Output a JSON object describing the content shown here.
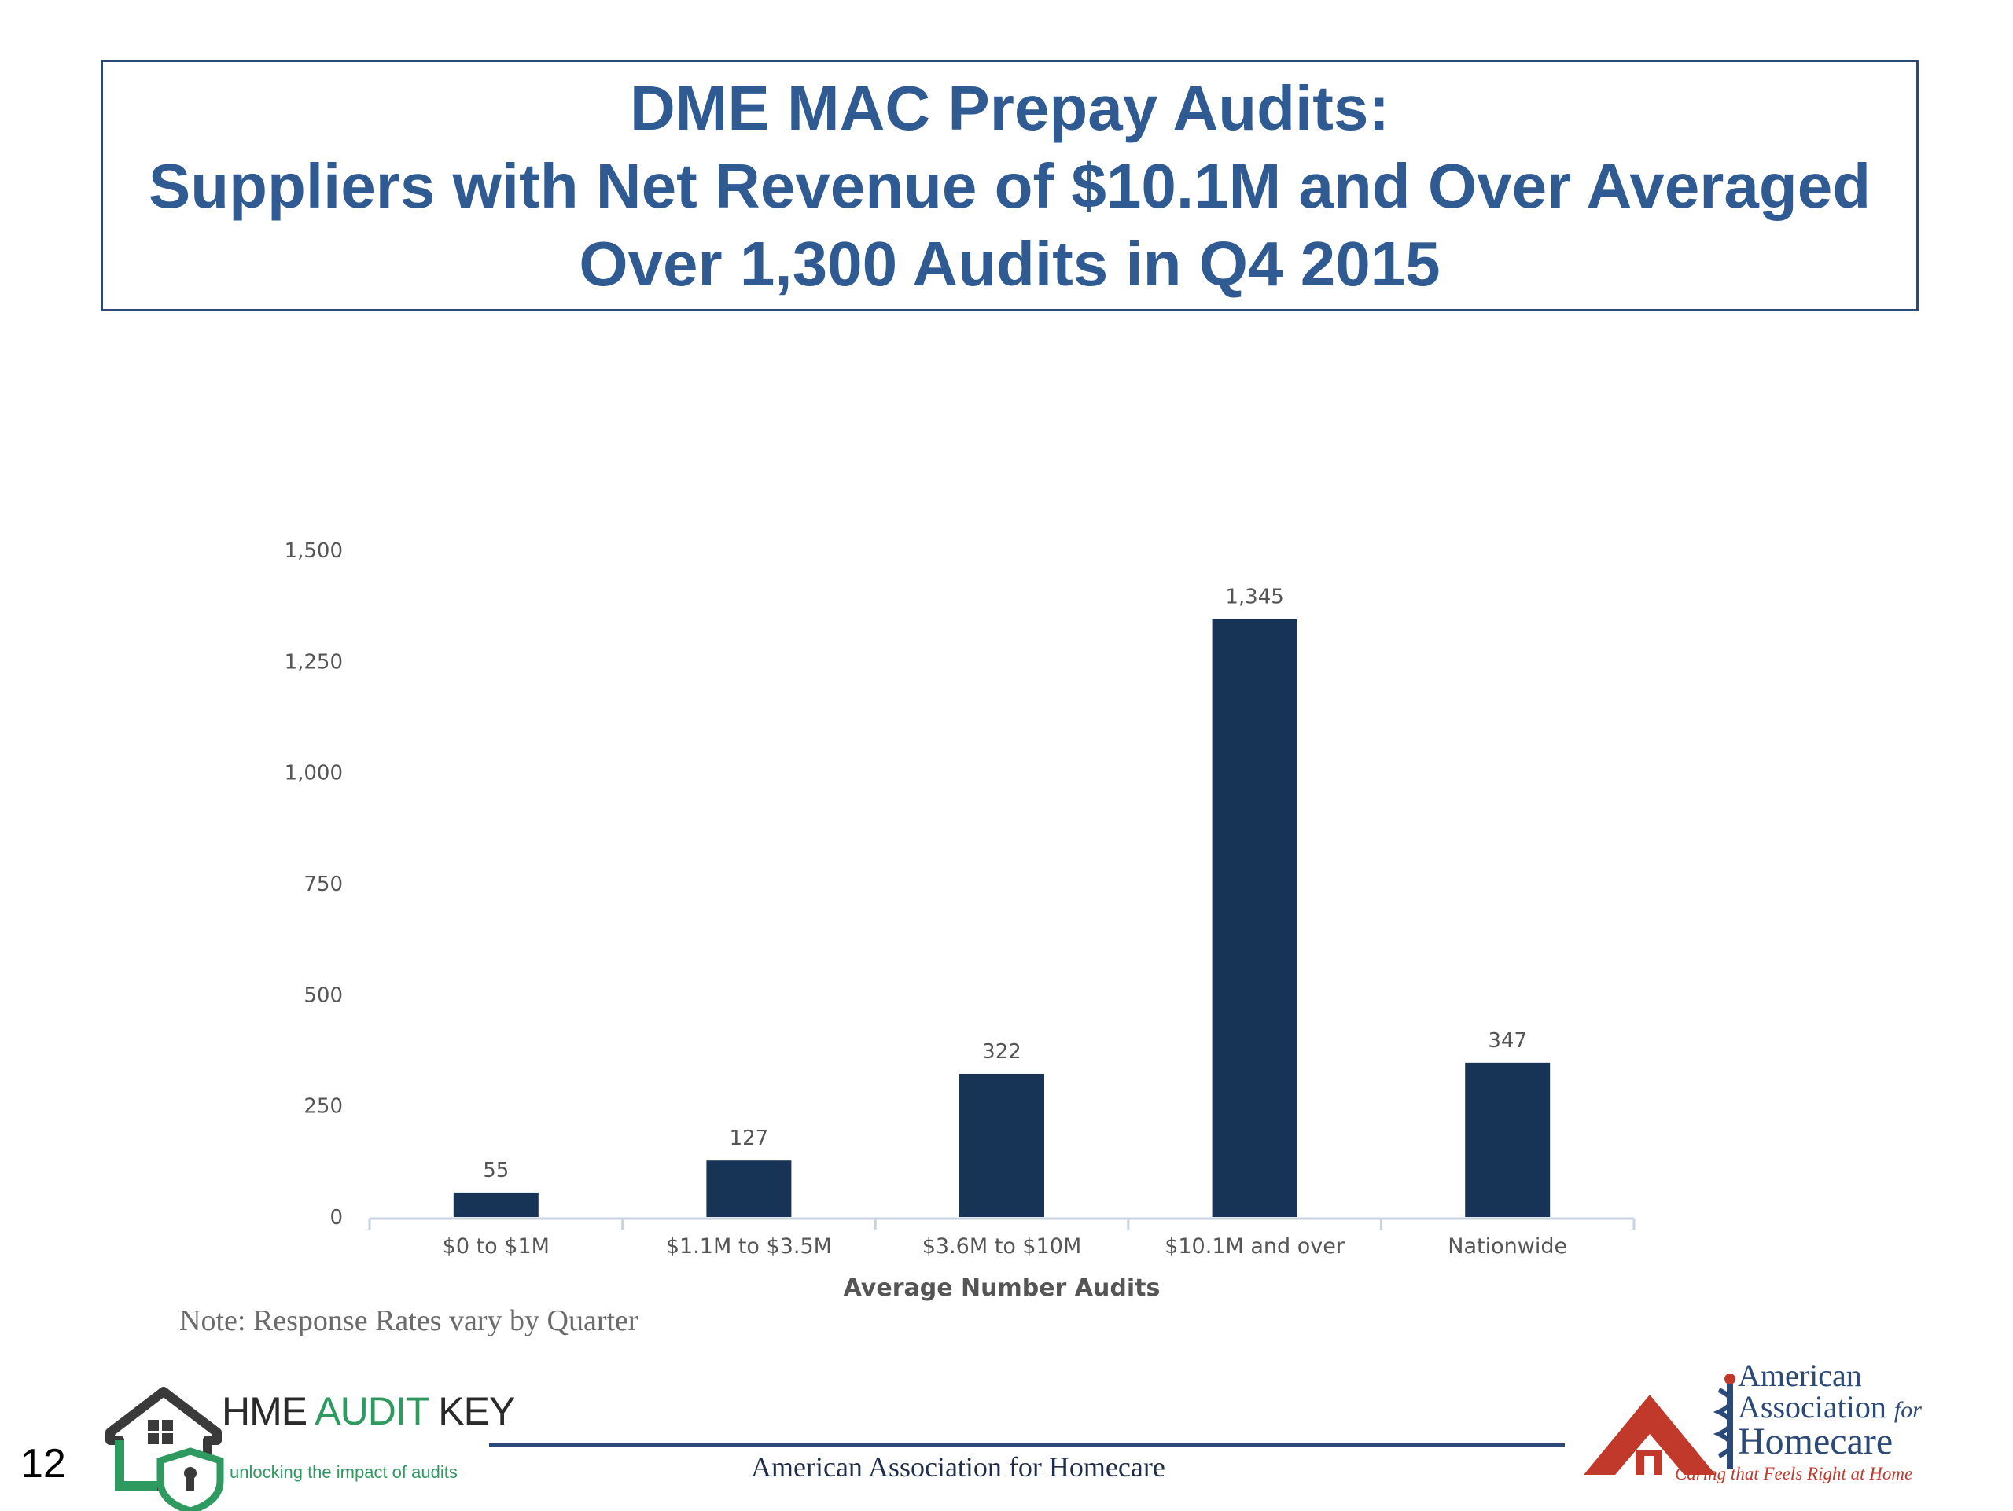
{
  "slide": {
    "title_lines": [
      "DME MAC Prepay Audits:",
      "Suppliers with Net Revenue of $10.1M and Over Averaged",
      "Over 1,300 Audits in Q4 2015"
    ],
    "note": "Note: Response Rates vary by Quarter",
    "page_number": "12",
    "footer_text": "American Association for Homecare"
  },
  "logos": {
    "left": {
      "brand_dark": "HME ",
      "brand_green": "AUDIT",
      "brand_dark2": " KEY",
      "tagline": "unlocking the impact of audits",
      "icon": "house-lock-icon"
    },
    "right": {
      "line1": "American",
      "line2": "Association",
      "line2_suffix": "for",
      "line3": "Homecare",
      "slogan": "Caring that Feels Right at Home",
      "icon": "house-caduceus-icon"
    }
  },
  "colors": {
    "bar": "#173457",
    "title": "#2f5a92",
    "border": "#2c4a77",
    "axis_text": "#555555",
    "accent_green": "#2e9a5f",
    "accent_red": "#c0392b"
  },
  "chart_data": {
    "type": "bar",
    "categories": [
      "$0 to $1M",
      "$1.1M to $3.5M",
      "$3.6M to $10M",
      "$10.1M and over",
      "Nationwide"
    ],
    "values": [
      55,
      127,
      322,
      1345,
      347
    ],
    "value_labels": [
      "55",
      "127",
      "322",
      "1,345",
      "347"
    ],
    "xlabel": "Average Number Audits",
    "ylabel": "",
    "ylim": [
      0,
      1500
    ],
    "yticks": [
      0,
      250,
      500,
      750,
      1000,
      1250,
      1500
    ],
    "ytick_labels": [
      "0",
      "250",
      "500",
      "750",
      "1,000",
      "1,250",
      "1,500"
    ],
    "grid": false,
    "legend": "none"
  }
}
